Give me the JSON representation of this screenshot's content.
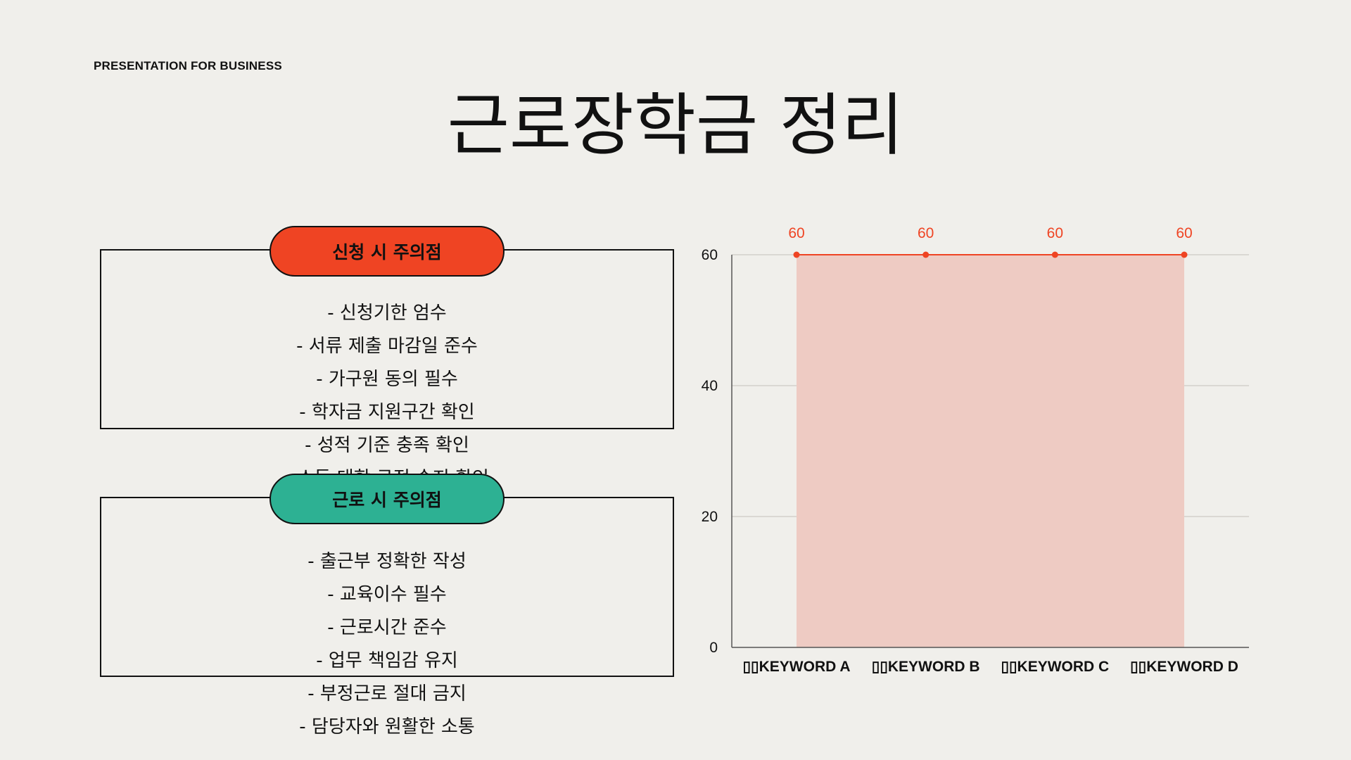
{
  "header": {
    "eyebrow": "PRESENTATION FOR BUSINESS",
    "title": "근로장학금 정리"
  },
  "cards": {
    "application": {
      "heading": "신청 시 주의점",
      "color": "#ef4423",
      "items": [
        "- 신청기한 엄수",
        "- 서류 제출 마감일 준수",
        "- 가구원 동의 필수",
        "- 학자금 지원구간 확인",
        "- 성적 기준 충족 확인",
        "- 소득 대학 규정 숙지 확인"
      ]
    },
    "work": {
      "heading": "근로 시 주의점",
      "color": "#2db193",
      "items": [
        "- 출근부 정확한 작성",
        "- 교육이수 필수",
        "- 근로시간 준수",
        "- 업무 책임감 유지",
        "- 부정근로 절대 금지",
        "- 담당자와 원활한 소통"
      ]
    }
  },
  "chart_data": {
    "type": "area",
    "categories": [
      "▯▯KEYWORD A",
      "▯▯KEYWORD B",
      "▯▯KEYWORD C",
      "▯▯KEYWORD D"
    ],
    "series": [
      {
        "values": [
          60,
          60,
          60,
          60
        ]
      }
    ],
    "data_labels": [
      "60",
      "60",
      "60",
      "60"
    ],
    "yticks": [
      "0",
      "20",
      "40",
      "60"
    ],
    "ylim": [
      0,
      60
    ],
    "grid": true,
    "line_color": "#ef4423",
    "fill_color": "#eecbc3"
  }
}
